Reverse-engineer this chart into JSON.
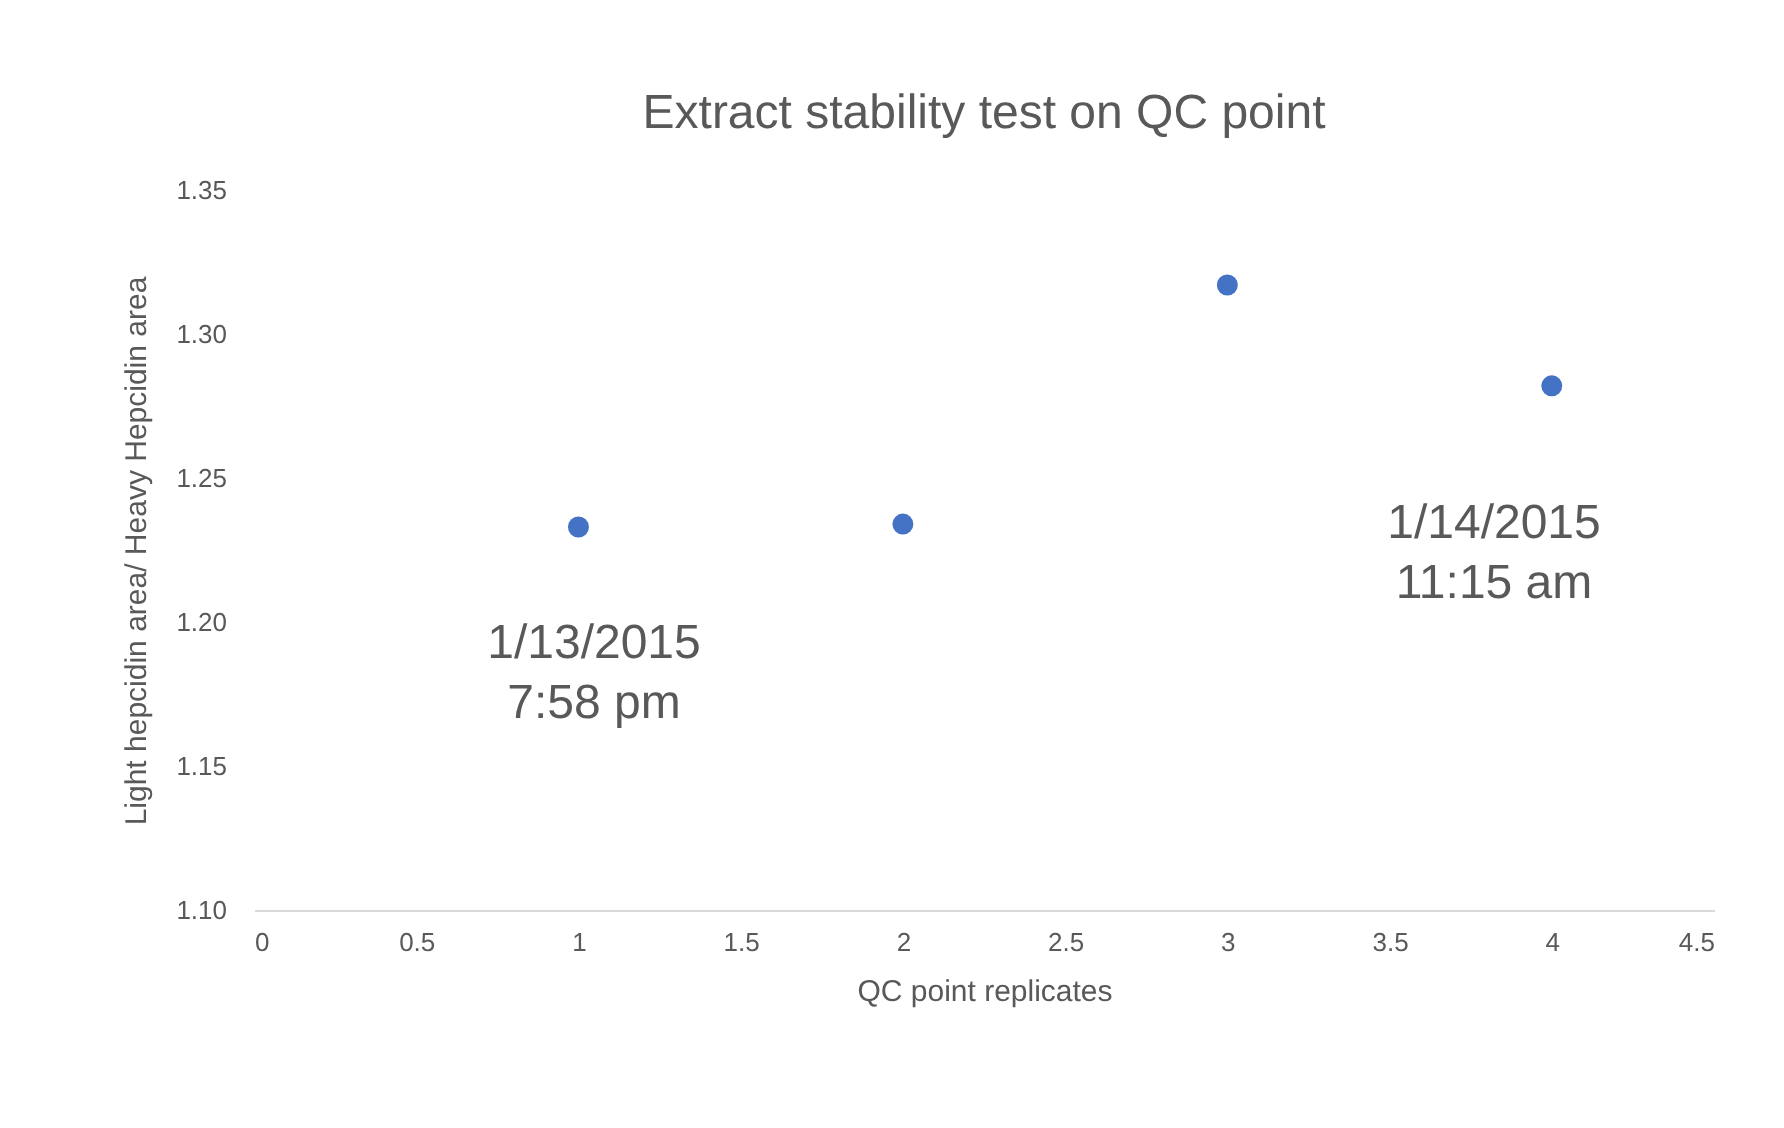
{
  "chart_data": {
    "type": "scatter",
    "title": "Extract stability test on QC point",
    "xlabel": "QC point replicates",
    "ylabel": "Light hepcidin area/ Heavy Hepcidin area",
    "x": [
      1,
      2,
      3,
      4
    ],
    "series": [
      {
        "color": "#4472c4",
        "values": [
          1.233,
          1.234,
          1.317,
          1.282
        ]
      }
    ],
    "xlim": [
      0,
      4.5
    ],
    "xticks": [
      0,
      0.5,
      1,
      1.5,
      2,
      2.5,
      3,
      3.5,
      4,
      4.5
    ],
    "ylim": [
      1.1,
      1.35
    ],
    "yticks": [
      {
        "value": 1.1,
        "label": "1.10"
      },
      {
        "value": 1.15,
        "label": "1.15"
      },
      {
        "value": 1.2,
        "label": "1.20"
      },
      {
        "value": 1.25,
        "label": "1.25"
      },
      {
        "value": 1.3,
        "label": "1.30"
      },
      {
        "value": 1.35,
        "label": "1.35"
      }
    ],
    "grid": false,
    "marker": "circle",
    "annotations": [
      "1/13/2015\n7:58 pm",
      "1/14/2015\n11:15 am"
    ]
  }
}
